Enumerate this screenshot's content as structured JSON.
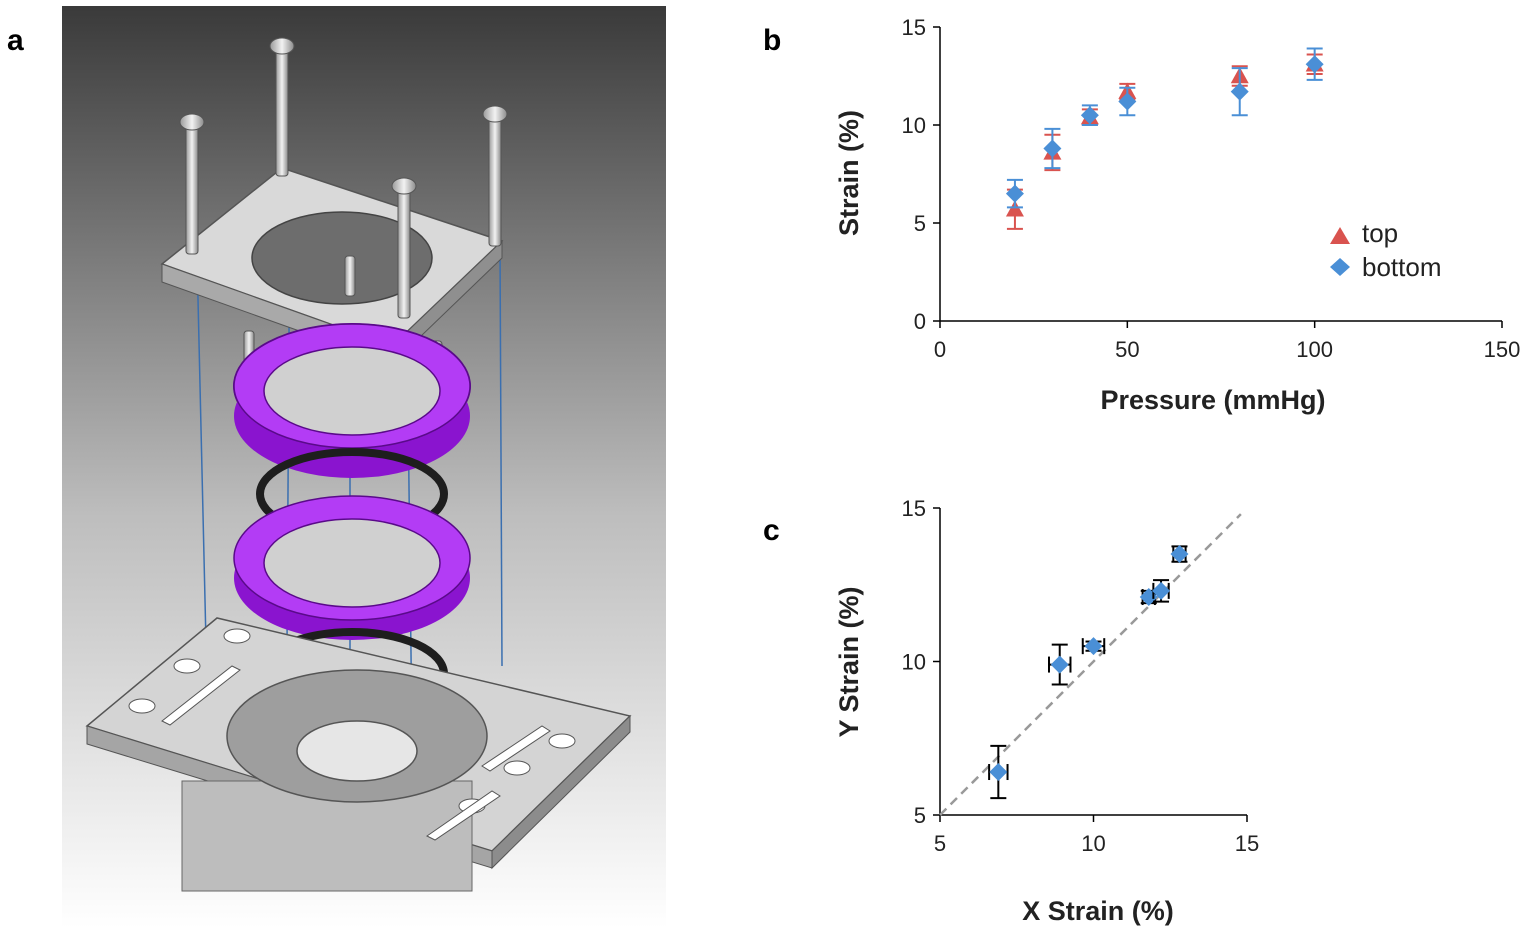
{
  "panels": {
    "a": "a",
    "b": "b",
    "c": "c"
  },
  "colors": {
    "top": "#d9534f",
    "bottom": "#4a8fd6",
    "purple": "#a020f0",
    "axis": "#000000",
    "fit_line": "#999999"
  },
  "icons": {
    "cad_model": "exploded-assembly-illustration"
  },
  "chart_data": [
    {
      "id": "b",
      "type": "scatter",
      "xlabel": "Pressure (mmHg)",
      "ylabel": "Strain (%)",
      "xlim": [
        0,
        150
      ],
      "ylim": [
        0,
        15
      ],
      "xticks": [
        0,
        50,
        100,
        150
      ],
      "yticks": [
        0,
        5,
        10,
        15
      ],
      "grid": false,
      "legend_position": "right",
      "series": [
        {
          "name": "top",
          "marker": "triangle",
          "x": [
            20,
            30,
            40,
            50,
            80,
            100
          ],
          "y": [
            5.7,
            8.6,
            10.4,
            11.7,
            12.5,
            13.1
          ],
          "yerr": [
            1.0,
            0.9,
            0.4,
            0.4,
            0.5,
            0.5
          ]
        },
        {
          "name": "bottom",
          "marker": "diamond",
          "x": [
            20,
            30,
            40,
            50,
            80,
            100
          ],
          "y": [
            6.5,
            8.8,
            10.5,
            11.2,
            11.7,
            13.1
          ],
          "yerr": [
            0.7,
            1.0,
            0.5,
            0.7,
            1.2,
            0.8
          ]
        }
      ]
    },
    {
      "id": "c",
      "type": "scatter",
      "xlabel": "X Strain (%)",
      "ylabel": "Y Strain (%)",
      "xlim": [
        5,
        15
      ],
      "ylim": [
        5,
        15
      ],
      "xticks": [
        5,
        10,
        15
      ],
      "yticks": [
        5,
        10,
        15
      ],
      "grid": false,
      "series": [
        {
          "marker": "diamond",
          "x": [
            6.9,
            8.9,
            10.0,
            11.8,
            12.2,
            12.8
          ],
          "y": [
            6.4,
            9.9,
            10.5,
            12.1,
            12.3,
            13.5
          ],
          "xerr": [
            0.3,
            0.35,
            0.35,
            0.2,
            0.25,
            0.2
          ],
          "yerr": [
            0.85,
            0.65,
            0.15,
            0.2,
            0.35,
            0.25
          ]
        }
      ],
      "fit_line": {
        "x": [
          5,
          14.8
        ],
        "y": [
          5,
          14.8
        ]
      }
    }
  ]
}
